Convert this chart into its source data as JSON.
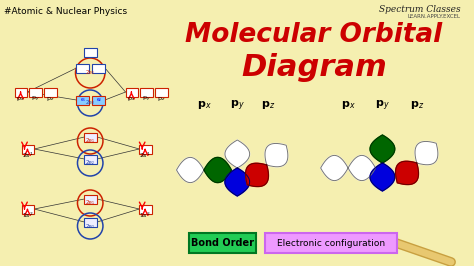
{
  "bg_color": "#f5efb0",
  "title_line1": "Molecular Orbital",
  "title_line2": "Diagram",
  "title_color": "#cc0000",
  "top_left_text": "#Atomic & Nuclear Physics",
  "top_right_text": "Spectrum Classes",
  "top_right_sub": "LEARN.APPLY.EXCEL",
  "bond_order_text": "Bond Order",
  "bond_order_bg": "#22cc55",
  "elec_config_text": "Electronic configuration",
  "elec_config_bg": "#ee99ff",
  "lobe_white": "#ffffff",
  "lobe_green": "#006600",
  "lobe_blue": "#0000dd",
  "lobe_red": "#cc0000",
  "lobe_edge_dark": "#555555",
  "box_red_edge": "#cc2200",
  "box_blue_edge": "#2244aa",
  "box_cyan_fill": "#88ccff",
  "circle_red": "#cc2200",
  "circle_blue": "#2244aa"
}
